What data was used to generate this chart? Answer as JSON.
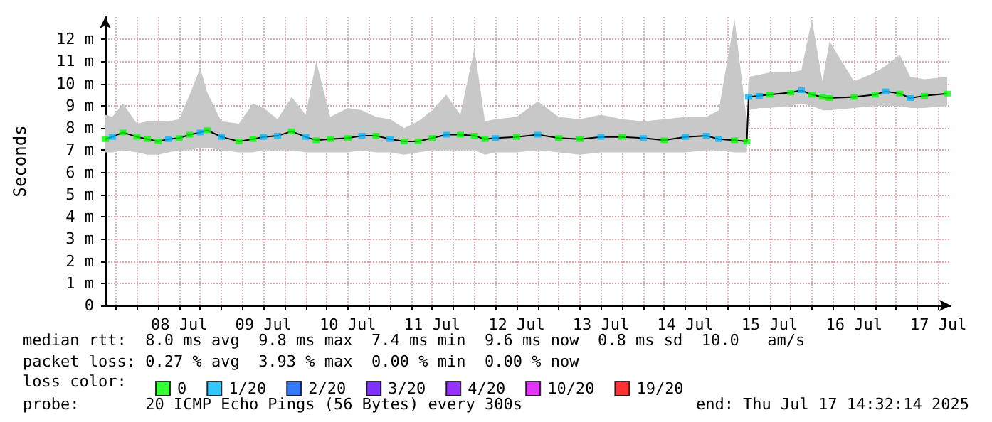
{
  "chart_data": {
    "type": "line",
    "ylabel": "Seconds",
    "legend_title": "loss color:",
    "legend": "bottom",
    "grid": true,
    "annotations": [
      "median rtt:  8.0 ms avg  9.8 ms max  7.4 ms min  9.6 ms now  0.8 ms sd  10.0   am/s",
      "packet loss: 0.27 % avg  3.93 % max  0.00 % min  0.00 % now",
      "probe:       20 ICMP Echo Pings (56 Bytes) every 300s",
      "end: Thu Jul 17 14:32:14 2025"
    ],
    "x": [
      "2025-07-07T15:00",
      "2025-07-07T17:00",
      "2025-07-07T20:00",
      "2025-07-08T00:00",
      "2025-07-08T03:00",
      "2025-07-08T06:00",
      "2025-07-08T09:00",
      "2025-07-08T12:00",
      "2025-07-08T15:00",
      "2025-07-08T18:00",
      "2025-07-08T20:00",
      "2025-07-09T00:00",
      "2025-07-09T05:00",
      "2025-07-09T09:00",
      "2025-07-09T12:00",
      "2025-07-09T16:00",
      "2025-07-09T20:00",
      "2025-07-10T00:00",
      "2025-07-10T03:00",
      "2025-07-10T07:00",
      "2025-07-10T12:00",
      "2025-07-10T16:00",
      "2025-07-10T20:00",
      "2025-07-11T00:00",
      "2025-07-11T04:00",
      "2025-07-11T08:00",
      "2025-07-11T12:00",
      "2025-07-11T16:00",
      "2025-07-11T20:00",
      "2025-07-12T00:00",
      "2025-07-12T03:00",
      "2025-07-12T06:00",
      "2025-07-12T12:00",
      "2025-07-12T18:00",
      "2025-07-13T00:00",
      "2025-07-13T06:00",
      "2025-07-13T12:00",
      "2025-07-13T18:00",
      "2025-07-14T00:00",
      "2025-07-14T06:00",
      "2025-07-14T12:00",
      "2025-07-14T18:00",
      "2025-07-14T21:30",
      "2025-07-15T02:00",
      "2025-07-15T05:30",
      "2025-07-15T06:00",
      "2025-07-15T09:00",
      "2025-07-15T12:00",
      "2025-07-15T18:00",
      "2025-07-15T21:00",
      "2025-07-16T00:00",
      "2025-07-16T03:00",
      "2025-07-16T05:00",
      "2025-07-16T12:00",
      "2025-07-16T18:00",
      "2025-07-16T21:00",
      "2025-07-17T01:00",
      "2025-07-17T04:00",
      "2025-07-17T08:00",
      "2025-07-17T14:30"
    ],
    "xlim": [
      "2025-07-07T15:00",
      "2025-07-17T15:30"
    ],
    "xticks": [
      {
        "value": "2025-07-07T18:00",
        "label": null
      },
      {
        "value": "2025-07-08T00:00",
        "label": null
      },
      {
        "value": "2025-07-08T06:00",
        "label": null
      },
      {
        "value": "2025-07-08T12:00",
        "label": "08 Jul"
      },
      {
        "value": "2025-07-08T18:00",
        "label": null
      },
      {
        "value": "2025-07-09T00:00",
        "label": null
      },
      {
        "value": "2025-07-09T06:00",
        "label": null
      },
      {
        "value": "2025-07-09T12:00",
        "label": "09 Jul"
      },
      {
        "value": "2025-07-09T18:00",
        "label": null
      },
      {
        "value": "2025-07-10T00:00",
        "label": null
      },
      {
        "value": "2025-07-10T06:00",
        "label": null
      },
      {
        "value": "2025-07-10T12:00",
        "label": "10 Jul"
      },
      {
        "value": "2025-07-10T18:00",
        "label": null
      },
      {
        "value": "2025-07-11T00:00",
        "label": null
      },
      {
        "value": "2025-07-11T06:00",
        "label": null
      },
      {
        "value": "2025-07-11T12:00",
        "label": "11 Jul"
      },
      {
        "value": "2025-07-11T18:00",
        "label": null
      },
      {
        "value": "2025-07-12T00:00",
        "label": null
      },
      {
        "value": "2025-07-12T06:00",
        "label": null
      },
      {
        "value": "2025-07-12T12:00",
        "label": "12 Jul"
      },
      {
        "value": "2025-07-12T18:00",
        "label": null
      },
      {
        "value": "2025-07-13T00:00",
        "label": null
      },
      {
        "value": "2025-07-13T06:00",
        "label": null
      },
      {
        "value": "2025-07-13T12:00",
        "label": "13 Jul"
      },
      {
        "value": "2025-07-13T18:00",
        "label": null
      },
      {
        "value": "2025-07-14T00:00",
        "label": null
      },
      {
        "value": "2025-07-14T06:00",
        "label": null
      },
      {
        "value": "2025-07-14T12:00",
        "label": "14 Jul"
      },
      {
        "value": "2025-07-14T18:00",
        "label": null
      },
      {
        "value": "2025-07-15T00:00",
        "label": null
      },
      {
        "value": "2025-07-15T06:00",
        "label": null
      },
      {
        "value": "2025-07-15T12:00",
        "label": "15 Jul"
      },
      {
        "value": "2025-07-15T18:00",
        "label": null
      },
      {
        "value": "2025-07-16T00:00",
        "label": null
      },
      {
        "value": "2025-07-16T06:00",
        "label": null
      },
      {
        "value": "2025-07-16T12:00",
        "label": "16 Jul"
      },
      {
        "value": "2025-07-16T18:00",
        "label": null
      },
      {
        "value": "2025-07-17T00:00",
        "label": null
      },
      {
        "value": "2025-07-17T06:00",
        "label": null
      },
      {
        "value": "2025-07-17T12:00",
        "label": "17 Jul"
      }
    ],
    "ylim": [
      0,
      13
    ],
    "yticks": [
      0,
      {
        "value": 1,
        "label": "1 m"
      },
      {
        "value": 2,
        "label": "2 m"
      },
      {
        "value": 3,
        "label": "3 m"
      },
      {
        "value": 4,
        "label": "4 m"
      },
      {
        "value": 5,
        "label": "5 m"
      },
      {
        "value": 6,
        "label": "6 m"
      },
      {
        "value": 7,
        "label": "7 m"
      },
      {
        "value": 8,
        "label": "8 m"
      },
      {
        "value": 9,
        "label": "9 m"
      },
      {
        "value": 10,
        "label": "10 m"
      },
      {
        "value": 11,
        "label": "11 m"
      },
      {
        "value": 12,
        "label": "12 m"
      }
    ],
    "series": [
      {
        "color": "#000000",
        "values": [
          7.5,
          7.6,
          7.8,
          7.6,
          7.5,
          7.4,
          7.5,
          7.55,
          7.7,
          7.8,
          7.9,
          7.6,
          7.4,
          7.5,
          7.6,
          7.65,
          7.85,
          7.6,
          7.45,
          7.5,
          7.55,
          7.65,
          7.65,
          7.5,
          7.4,
          7.4,
          7.55,
          7.7,
          7.7,
          7.65,
          7.5,
          7.55,
          7.6,
          7.7,
          7.55,
          7.5,
          7.6,
          7.6,
          7.55,
          7.45,
          7.6,
          7.65,
          7.5,
          7.45,
          7.4,
          9.4,
          9.45,
          9.5,
          9.6,
          9.7,
          9.5,
          9.4,
          9.35,
          9.4,
          9.5,
          9.65,
          9.55,
          9.35,
          9.45,
          9.55
        ],
        "lower": [
          6.9,
          6.9,
          7.0,
          6.9,
          6.8,
          6.8,
          6.9,
          7.0,
          7.0,
          7.1,
          7.1,
          7.0,
          6.9,
          6.9,
          7.0,
          7.0,
          7.0,
          6.9,
          6.9,
          6.9,
          6.9,
          7.0,
          6.9,
          6.9,
          6.8,
          6.9,
          7.0,
          7.0,
          7.0,
          7.0,
          6.8,
          6.9,
          6.9,
          7.0,
          6.9,
          6.8,
          6.9,
          6.9,
          6.9,
          6.9,
          6.9,
          7.0,
          7.0,
          6.9,
          6.9,
          8.8,
          8.9,
          8.9,
          9.0,
          9.1,
          9.0,
          8.8,
          8.8,
          8.9,
          9.0,
          9.0,
          9.0,
          8.9,
          8.9,
          9.0
        ],
        "upper": [
          8.6,
          8.5,
          9.1,
          8.2,
          8.3,
          8.3,
          8.3,
          8.4,
          9.5,
          10.7,
          9.6,
          8.3,
          8.2,
          9.1,
          8.9,
          8.4,
          9.4,
          8.6,
          11.0,
          8.5,
          8.9,
          8.8,
          8.5,
          8.4,
          8.0,
          8.3,
          8.8,
          9.5,
          8.6,
          11.6,
          8.3,
          8.4,
          8.5,
          9.2,
          8.5,
          8.4,
          8.6,
          8.4,
          8.3,
          8.4,
          8.5,
          8.5,
          8.8,
          12.9,
          8.3,
          10.3,
          10.4,
          10.5,
          10.5,
          10.6,
          12.9,
          10.1,
          11.9,
          10.1,
          10.5,
          10.8,
          11.3,
          10.3,
          10.2,
          10.3
        ]
      },
      {
        "type": "scatter",
        "marker": "square",
        "name": "0",
        "color": "#00ff00",
        "values": [
          7.5,
          null,
          7.8,
          7.6,
          7.5,
          7.4,
          null,
          7.55,
          7.7,
          null,
          7.9,
          null,
          7.4,
          7.5,
          null,
          null,
          7.85,
          null,
          7.45,
          7.5,
          7.55,
          null,
          7.65,
          null,
          7.4,
          7.4,
          7.55,
          null,
          7.7,
          7.65,
          7.5,
          null,
          7.6,
          null,
          7.55,
          7.5,
          null,
          7.6,
          null,
          7.45,
          null,
          null,
          null,
          7.45,
          7.4,
          null,
          null,
          9.5,
          9.6,
          null,
          9.5,
          9.4,
          9.35,
          9.4,
          9.5,
          null,
          9.55,
          null,
          9.45,
          9.55
        ]
      },
      {
        "type": "scatter",
        "marker": "square",
        "name": "1/20",
        "color": "#00b8ff",
        "values": [
          null,
          7.6,
          null,
          null,
          null,
          null,
          7.5,
          null,
          null,
          7.8,
          null,
          7.6,
          null,
          null,
          7.6,
          7.65,
          null,
          7.6,
          null,
          null,
          null,
          7.65,
          null,
          7.5,
          null,
          null,
          null,
          7.7,
          null,
          null,
          null,
          7.55,
          null,
          7.7,
          null,
          null,
          7.6,
          null,
          7.55,
          null,
          7.6,
          7.65,
          7.5,
          null,
          null,
          9.4,
          9.45,
          null,
          null,
          9.7,
          null,
          null,
          null,
          null,
          null,
          9.65,
          null,
          9.35,
          null,
          null
        ]
      },
      {
        "type": "scatter",
        "marker": "square",
        "name": "2/20",
        "color": "#0059ff",
        "values": [
          null,
          null,
          null,
          null,
          null,
          null,
          null,
          null,
          null,
          null,
          null,
          null,
          null,
          null,
          null,
          null,
          null,
          null,
          null,
          null,
          null,
          null,
          null,
          null,
          null,
          null,
          null,
          null,
          null,
          null,
          null,
          null,
          null,
          null,
          null,
          null,
          null,
          null,
          null,
          null,
          null,
          null,
          null,
          null,
          null,
          null,
          null,
          null,
          null,
          null,
          null,
          null,
          null,
          null,
          null,
          null,
          null,
          null,
          null,
          null
        ]
      },
      {
        "type": "scatter",
        "marker": "square",
        "name": "3/20",
        "color": "#5e00ff",
        "values": [
          null,
          null,
          null,
          null,
          null,
          null,
          null,
          null,
          null,
          null,
          null,
          null,
          null,
          null,
          null,
          null,
          null,
          null,
          null,
          null,
          null,
          null,
          null,
          null,
          null,
          null,
          null,
          null,
          null,
          null,
          null,
          null,
          null,
          null,
          null,
          null,
          null,
          null,
          null,
          null,
          null,
          null,
          null,
          null,
          null,
          null,
          null,
          null,
          null,
          null,
          null,
          null,
          null,
          null,
          null,
          null,
          null,
          null,
          null,
          null
        ]
      },
      {
        "type": "scatter",
        "marker": "square",
        "name": "4/20",
        "color": "#7e00ff",
        "values": [
          null,
          null,
          null,
          null,
          null,
          null,
          null,
          null,
          null,
          null,
          null,
          null,
          null,
          null,
          null,
          null,
          null,
          null,
          null,
          null,
          null,
          null,
          null,
          null,
          null,
          null,
          null,
          null,
          null,
          null,
          null,
          null,
          null,
          null,
          null,
          null,
          null,
          null,
          null,
          null,
          null,
          null,
          null,
          null,
          null,
          null,
          null,
          null,
          null,
          null,
          null,
          null,
          null,
          null,
          null,
          null,
          null,
          null,
          null,
          null
        ]
      },
      {
        "type": "scatter",
        "marker": "square",
        "name": "10/20",
        "color": "#dd00ff",
        "values": [
          null,
          null,
          null,
          null,
          null,
          null,
          null,
          null,
          null,
          null,
          null,
          null,
          null,
          null,
          null,
          null,
          null,
          null,
          null,
          null,
          null,
          null,
          null,
          null,
          null,
          null,
          null,
          null,
          null,
          null,
          null,
          null,
          null,
          null,
          null,
          null,
          null,
          null,
          null,
          null,
          null,
          null,
          null,
          null,
          null,
          null,
          null,
          null,
          null,
          null,
          null,
          null,
          null,
          null,
          null,
          null,
          null,
          null,
          null,
          null
        ]
      },
      {
        "type": "scatter",
        "marker": "square",
        "name": "19/20",
        "color": "#ff0000",
        "values": [
          null,
          null,
          null,
          null,
          null,
          null,
          null,
          null,
          null,
          null,
          null,
          null,
          null,
          null,
          null,
          null,
          null,
          null,
          null,
          null,
          null,
          null,
          null,
          null,
          null,
          null,
          null,
          null,
          null,
          null,
          null,
          null,
          null,
          null,
          null,
          null,
          null,
          null,
          null,
          null,
          null,
          null,
          null,
          null,
          null,
          null,
          null,
          null,
          null,
          null,
          null,
          null,
          null,
          null,
          null,
          null,
          null,
          null,
          null,
          null
        ]
      }
    ]
  }
}
